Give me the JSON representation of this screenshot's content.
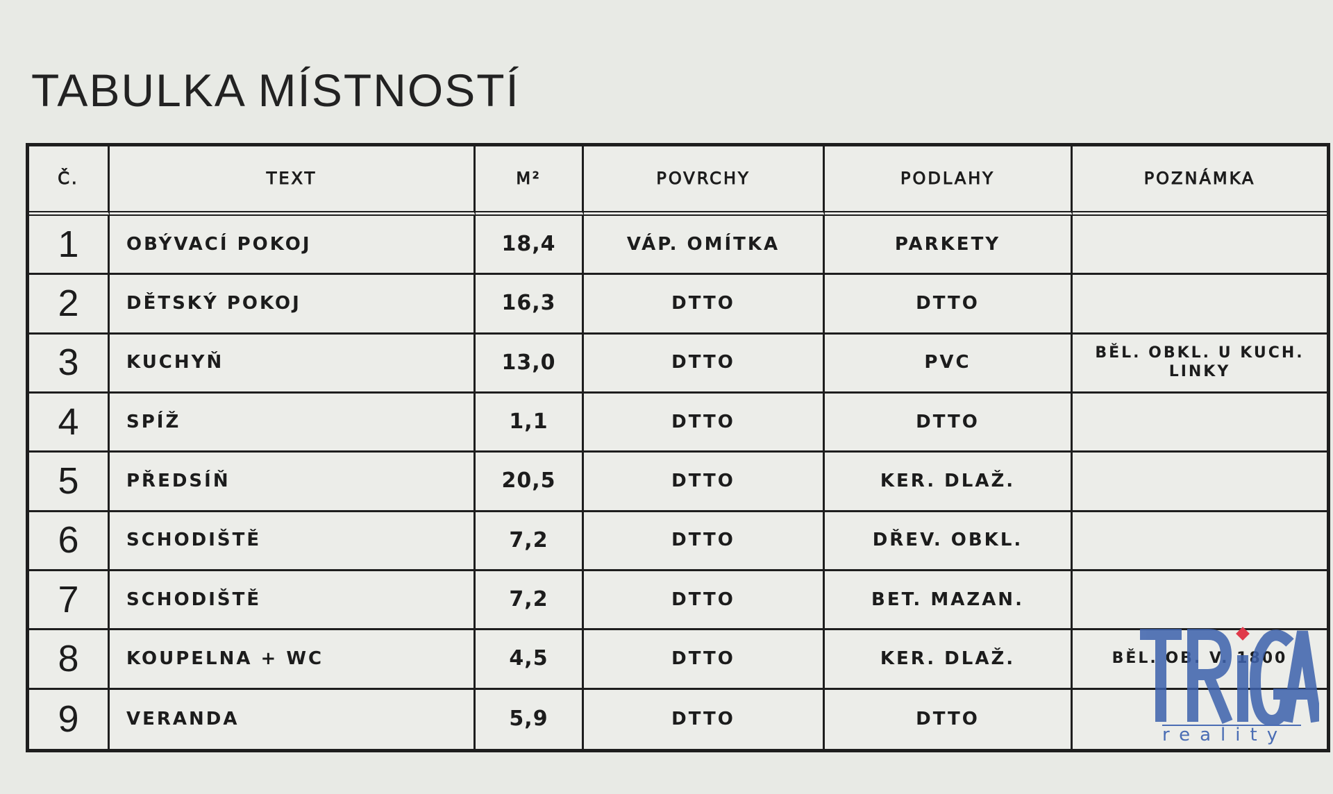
{
  "title": "TABULKA MÍSTNOSTÍ",
  "table": {
    "headers": [
      "Č.",
      "TEXT",
      "M²",
      "POVRCHY",
      "PODLAHY",
      "POZNÁMKA"
    ],
    "rows": [
      {
        "no": "1",
        "text": "OBÝVACÍ POKOJ",
        "area": "18,4",
        "surfaces": "VÁP. OMÍTKA",
        "floors": "PARKETY",
        "note": ""
      },
      {
        "no": "2",
        "text": "DĚTSKÝ POKOJ",
        "area": "16,3",
        "surfaces": "DTTO",
        "floors": "DTTO",
        "note": ""
      },
      {
        "no": "3",
        "text": "KUCHYŇ",
        "area": "13,0",
        "surfaces": "DTTO",
        "floors": "PVC",
        "note": "BĚL. OBKL. U KUCH. LINKY"
      },
      {
        "no": "4",
        "text": "SPÍŽ",
        "area": "1,1",
        "surfaces": "DTTO",
        "floors": "DTTO",
        "note": ""
      },
      {
        "no": "5",
        "text": "PŘEDSÍŇ",
        "area": "20,5",
        "surfaces": "DTTO",
        "floors": "KER. DLAŽ.",
        "note": ""
      },
      {
        "no": "6",
        "text": "SCHODIŠTĚ",
        "area": "7,2",
        "surfaces": "DTTO",
        "floors": "DŘEV. OBKL.",
        "note": ""
      },
      {
        "no": "7",
        "text": "SCHODIŠTĚ",
        "area": "7,2",
        "surfaces": "DTTO",
        "floors": "BET. MAZAN.",
        "note": ""
      },
      {
        "no": "8",
        "text": "KOUPELNA + WC",
        "area": "4,5",
        "surfaces": "DTTO",
        "floors": "KER. DLAŽ.",
        "note": "BĚL. OB. V. 1800"
      },
      {
        "no": "9",
        "text": "VERANDA",
        "area": "5,9",
        "surfaces": "DTTO",
        "floors": "DTTO",
        "note": ""
      }
    ]
  },
  "watermark": {
    "brand": "TRiGA",
    "sub": "reality",
    "colors": {
      "blue": "#3d62ad",
      "red": "#e03a4a"
    }
  }
}
